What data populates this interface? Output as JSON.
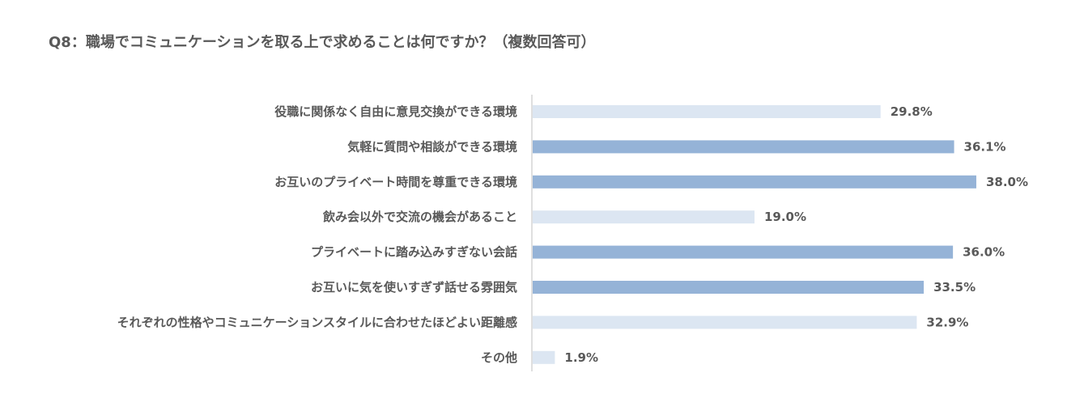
{
  "chart_data": {
    "type": "bar",
    "orientation": "horizontal",
    "title": "Q8：職場でコミュニケーションを取る上で求めることは何ですか？（複数回答可）",
    "categories": [
      "役職に関係なく自由に意見交換ができる環境",
      "気軽に質問や相談ができる環境",
      "お互いのプライベート時間を尊重できる環境",
      "飲み会以外で交流の機会があること",
      "プライベートに踏み込みすぎない会話",
      "お互いに気を使いすぎず話せる雰囲気",
      "それぞれの性格やコミュニケーションスタイルに合わせたほどよい距離感",
      "その他"
    ],
    "values": [
      29.8,
      36.1,
      38.0,
      19.0,
      36.0,
      33.5,
      32.9,
      1.9
    ],
    "data_labels": [
      "29.8%",
      "36.1%",
      "38.0%",
      "19.0%",
      "36.0%",
      "33.5%",
      "32.9%",
      "1.9%"
    ],
    "highlighted": [
      false,
      true,
      true,
      false,
      true,
      true,
      false,
      false
    ],
    "xlim": [
      0,
      45
    ],
    "grid": false,
    "legend": "none",
    "colors": {
      "highlight": "#95B3D7",
      "normal": "#DCE6F2",
      "axis": "#BFBFBF",
      "text": "#595959"
    }
  }
}
